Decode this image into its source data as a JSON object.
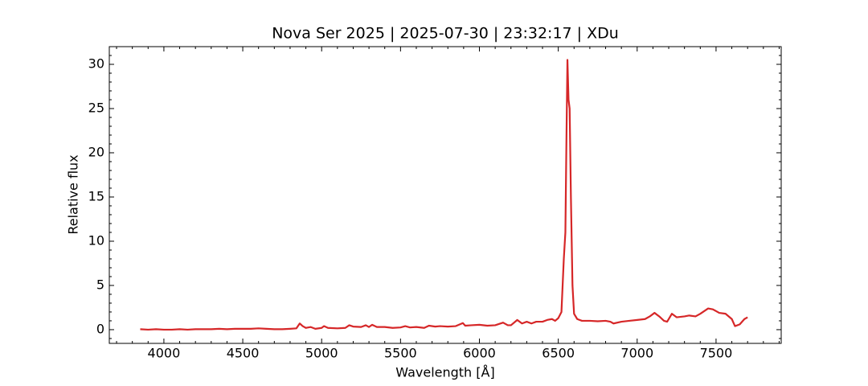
{
  "chart_data": {
    "type": "line",
    "title": "Nova Ser 2025 | 2025-07-30 | 23:32:17 | XDu",
    "xlabel": "Wavelength [Å]",
    "ylabel": "Relative flux",
    "xlim": [
      3654,
      7913
    ],
    "ylim": [
      -1.55,
      32
    ],
    "xticks": [
      4000,
      4500,
      5000,
      5500,
      6000,
      6500,
      7000,
      7500
    ],
    "yticks": [
      0,
      5,
      10,
      15,
      20,
      25,
      30
    ],
    "xminorticks": [
      3700,
      3800,
      3900,
      4100,
      4200,
      4300,
      4400,
      4600,
      4700,
      4800,
      4900,
      5100,
      5200,
      5300,
      5400,
      5600,
      5700,
      5800,
      5900,
      6100,
      6200,
      6300,
      6400,
      6600,
      6700,
      6800,
      6900,
      7100,
      7200,
      7300,
      7400,
      7600,
      7700,
      7800,
      7900
    ],
    "yminorticks": [
      -1,
      1,
      2,
      3,
      4,
      6,
      7,
      8,
      9,
      11,
      12,
      13,
      14,
      16,
      17,
      18,
      19,
      21,
      22,
      23,
      24,
      26,
      27,
      28,
      29,
      31,
      32
    ],
    "series": [
      {
        "color": "#d62728",
        "x": [
          3850,
          3900,
          3950,
          4000,
          4050,
          4100,
          4150,
          4200,
          4250,
          4300,
          4350,
          4400,
          4450,
          4500,
          4550,
          4600,
          4650,
          4700,
          4750,
          4800,
          4840,
          4861,
          4880,
          4900,
          4930,
          4960,
          5000,
          5015,
          5040,
          5100,
          5150,
          5175,
          5200,
          5250,
          5280,
          5300,
          5320,
          5350,
          5400,
          5450,
          5500,
          5530,
          5560,
          5600,
          5650,
          5680,
          5720,
          5750,
          5800,
          5850,
          5895,
          5910,
          5950,
          6000,
          6050,
          6100,
          6150,
          6180,
          6200,
          6240,
          6270,
          6300,
          6330,
          6360,
          6400,
          6430,
          6460,
          6480,
          6500,
          6520,
          6535,
          6545,
          6552,
          6558,
          6565,
          6572,
          6580,
          6590,
          6600,
          6620,
          6650,
          6700,
          6750,
          6800,
          6830,
          6850,
          6900,
          6950,
          7000,
          7050,
          7080,
          7110,
          7140,
          7170,
          7190,
          7220,
          7250,
          7300,
          7330,
          7370,
          7400,
          7450,
          7480,
          7520,
          7560,
          7600,
          7620,
          7650,
          7680,
          7700
        ],
        "values": [
          0.05,
          0.0,
          0.05,
          0.0,
          0.0,
          0.05,
          0.0,
          0.05,
          0.05,
          0.05,
          0.1,
          0.05,
          0.1,
          0.1,
          0.1,
          0.15,
          0.1,
          0.05,
          0.05,
          0.1,
          0.15,
          0.7,
          0.4,
          0.2,
          0.3,
          0.1,
          0.2,
          0.4,
          0.2,
          0.15,
          0.2,
          0.5,
          0.35,
          0.3,
          0.5,
          0.3,
          0.55,
          0.3,
          0.3,
          0.2,
          0.25,
          0.4,
          0.25,
          0.3,
          0.2,
          0.45,
          0.35,
          0.4,
          0.35,
          0.4,
          0.75,
          0.45,
          0.5,
          0.55,
          0.45,
          0.5,
          0.8,
          0.5,
          0.5,
          1.1,
          0.7,
          0.9,
          0.7,
          0.9,
          0.9,
          1.1,
          1.2,
          1.0,
          1.3,
          2.0,
          8,
          11,
          22,
          30.5,
          26,
          25,
          15,
          5,
          1.8,
          1.2,
          1.0,
          1.0,
          0.95,
          1.0,
          0.9,
          0.7,
          0.9,
          1.0,
          1.1,
          1.2,
          1.5,
          1.9,
          1.5,
          1.0,
          0.9,
          1.8,
          1.4,
          1.5,
          1.6,
          1.5,
          1.8,
          2.4,
          2.3,
          1.9,
          1.8,
          1.2,
          0.4,
          0.6,
          1.2,
          1.4
        ]
      }
    ]
  }
}
